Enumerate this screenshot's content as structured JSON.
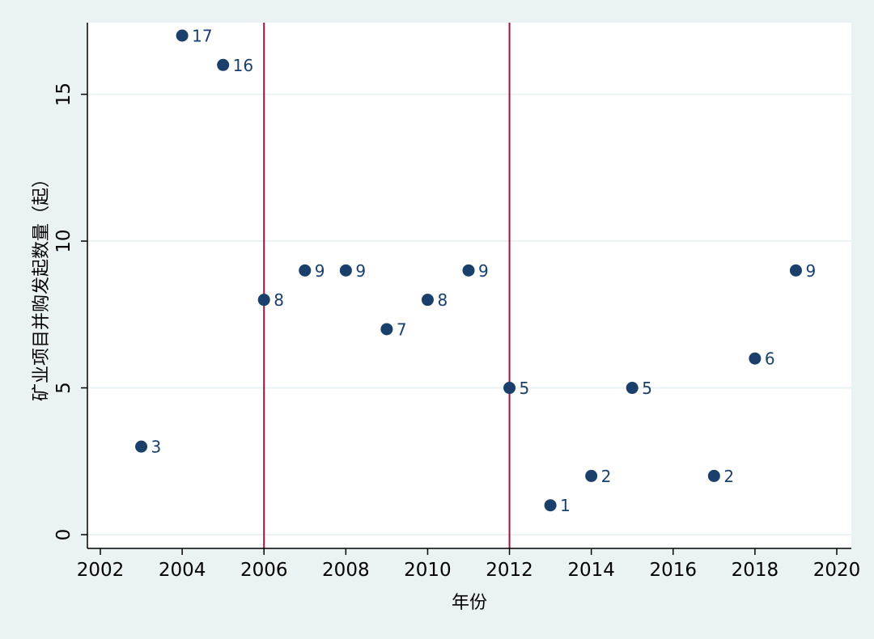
{
  "chart_data": {
    "type": "scatter",
    "title": "",
    "xlabel": "年份",
    "ylabel": "矿业项目并购发起数量（起）",
    "xlim": [
      2002,
      2020
    ],
    "ylim": [
      0,
      17
    ],
    "x_ticks": [
      2002,
      2004,
      2006,
      2008,
      2010,
      2012,
      2014,
      2016,
      2018,
      2020
    ],
    "y_ticks": [
      0,
      5,
      10,
      15
    ],
    "grid": "horizontal",
    "reference_lines_x": [
      2006,
      2012
    ],
    "points": [
      {
        "x": 2003,
        "y": 3,
        "label": "3"
      },
      {
        "x": 2004,
        "y": 17,
        "label": "17"
      },
      {
        "x": 2005,
        "y": 16,
        "label": "16"
      },
      {
        "x": 2006,
        "y": 8,
        "label": "8"
      },
      {
        "x": 2007,
        "y": 9,
        "label": "9"
      },
      {
        "x": 2008,
        "y": 9,
        "label": "9"
      },
      {
        "x": 2009,
        "y": 7,
        "label": "7"
      },
      {
        "x": 2010,
        "y": 8,
        "label": "8"
      },
      {
        "x": 2011,
        "y": 9,
        "label": "9"
      },
      {
        "x": 2012,
        "y": 5,
        "label": "5"
      },
      {
        "x": 2013,
        "y": 1,
        "label": "1"
      },
      {
        "x": 2014,
        "y": 2,
        "label": "2"
      },
      {
        "x": 2015,
        "y": 5,
        "label": "5"
      },
      {
        "x": 2017,
        "y": 2,
        "label": "2"
      },
      {
        "x": 2018,
        "y": 6,
        "label": "6"
      },
      {
        "x": 2019,
        "y": 9,
        "label": "9"
      }
    ],
    "colors": {
      "background": "#eaf2f3",
      "plot_area": "#ffffff",
      "marker": "#1a3f6b",
      "label": "#1a3f6b",
      "reference_line": "#a3123c",
      "grid": "#eaf2f3",
      "axis": "#000000"
    }
  }
}
